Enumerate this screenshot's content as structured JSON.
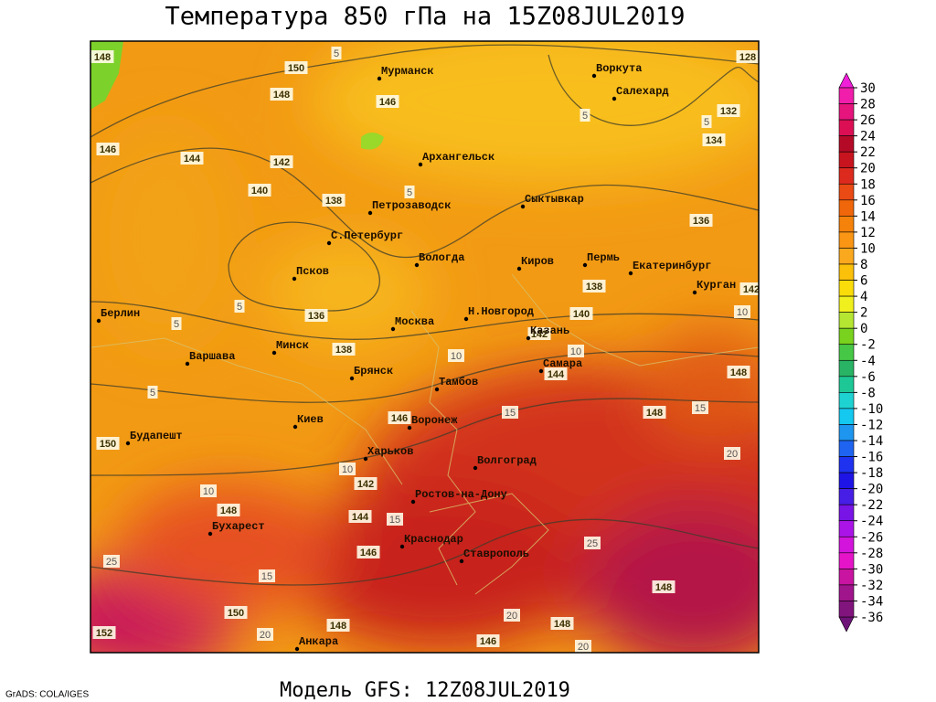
{
  "header": {
    "title": "Температура 850 гПа на 15Z08JUL2019"
  },
  "footer": {
    "model": "Модель GFS: 12Z08JUL2019",
    "credit": "GrADS: COLA/IGES"
  },
  "cities": [
    "Мурманск",
    "Воркута",
    "Салехард",
    "Архангельск",
    "Петрозаводск",
    "Сыктывкар",
    "С.Петербург",
    "Вологда",
    "Киров",
    "Пермь",
    "Екатеринбург",
    "Курган",
    "Псков",
    "Берлин",
    "Москва",
    "Н.Новгород",
    "Казань",
    "Минск",
    "Варшава",
    "Самара",
    "Брянск",
    "Тамбов",
    "Воронеж",
    "Киев",
    "Будапешт",
    "Харьков",
    "Волгоград",
    "Ростов-на-Дону",
    "Бухарест",
    "Краснодар",
    "Ставрополь",
    "Анкара"
  ],
  "height_labels": [
    148,
    150,
    148,
    146,
    146,
    144,
    142,
    140,
    138,
    136,
    138,
    140,
    138,
    136,
    134,
    132,
    128,
    142,
    148,
    148,
    146,
    144,
    142,
    142,
    144,
    146,
    148,
    150,
    150,
    148,
    146,
    148,
    148,
    152
  ],
  "temperature_labels": [
    5,
    5,
    5,
    5,
    5,
    5,
    5,
    10,
    10,
    10,
    10,
    10,
    15,
    15,
    15,
    15,
    20,
    20,
    20,
    25,
    25,
    20
  ],
  "colorbar": {
    "levels": [
      30,
      28,
      26,
      24,
      22,
      20,
      18,
      16,
      14,
      12,
      10,
      8,
      6,
      4,
      2,
      0,
      -2,
      -4,
      -6,
      -8,
      -10,
      -12,
      -14,
      -16,
      -18,
      -20,
      -22,
      -24,
      -26,
      -28,
      -30,
      -32,
      -34,
      -36
    ],
    "colors": [
      "#f01eaa",
      "#e6147d",
      "#dc0f55",
      "#b40a28",
      "#c8141e",
      "#dc2a1e",
      "#ea4a14",
      "#f0660a",
      "#f5820a",
      "#fa9614",
      "#faa81e",
      "#fac00a",
      "#fadc0a",
      "#f0f01e",
      "#b4e632",
      "#78d21e",
      "#46c846",
      "#28b464",
      "#1ec896",
      "#1ed2d2",
      "#14c8f0",
      "#1e96f0",
      "#1e64f0",
      "#1e32f0",
      "#1e14e6",
      "#461ee6",
      "#7814e6",
      "#aa14e6",
      "#d214dc",
      "#e614c8",
      "#c814a0",
      "#a0148c",
      "#82147d"
    ],
    "above_color": "#f020d8",
    "below_color": "#6e1478"
  }
}
